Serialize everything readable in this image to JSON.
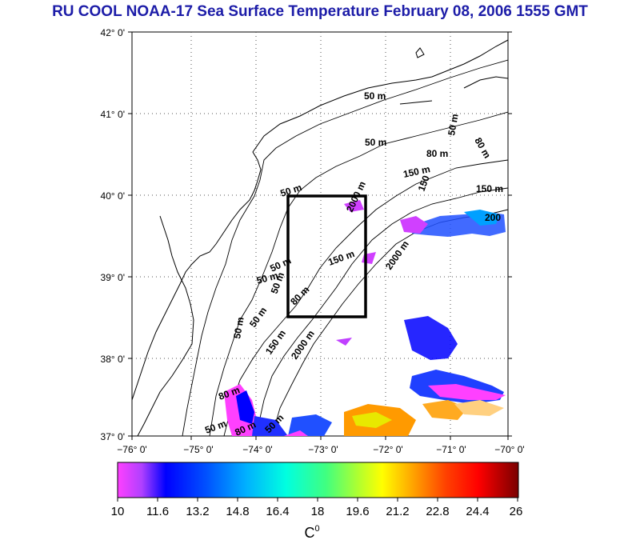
{
  "title": "RU COOL  NOAA-17 Sea Surface Temperature February 08, 2006 1555 GMT",
  "map": {
    "lat_ticks": [
      "42° 0'",
      "41° 0'",
      "40° 0'",
      "39° 0'",
      "38° 0'",
      "37° 0'"
    ],
    "lon_ticks": [
      "−76° 0'",
      "−75° 0'",
      "−74° 0'",
      "−73° 0'",
      "−72° 0'",
      "−71° 0'",
      "−70° 0'"
    ],
    "isobath_labels": [
      "50 m",
      "50 m",
      "80 m",
      "150 m",
      "150 m",
      "200",
      "50 m",
      "80 m",
      "50 m",
      "50 m",
      "50 m",
      "150 m",
      "2000 m",
      "150",
      "2000 m",
      "50 m",
      "50 m",
      "80 m",
      "50 m",
      "150 m",
      "2000 m",
      "80 m",
      "50 m",
      "80 m",
      "50 m"
    ],
    "study_box": {
      "lon_min": -73.5,
      "lon_max": -72.5,
      "lat_min": 38.5,
      "lat_max": 40.0
    },
    "colors": {
      "box": "#000000",
      "land": "#ffffff"
    }
  },
  "colorbar": {
    "ticks": [
      "10",
      "11.6",
      "13.2",
      "14.8",
      "16.4",
      "18",
      "19.6",
      "21.2",
      "22.8",
      "24.4",
      "26"
    ],
    "unit": "C",
    "unit_sup": "0",
    "min": 10,
    "max": 26
  }
}
